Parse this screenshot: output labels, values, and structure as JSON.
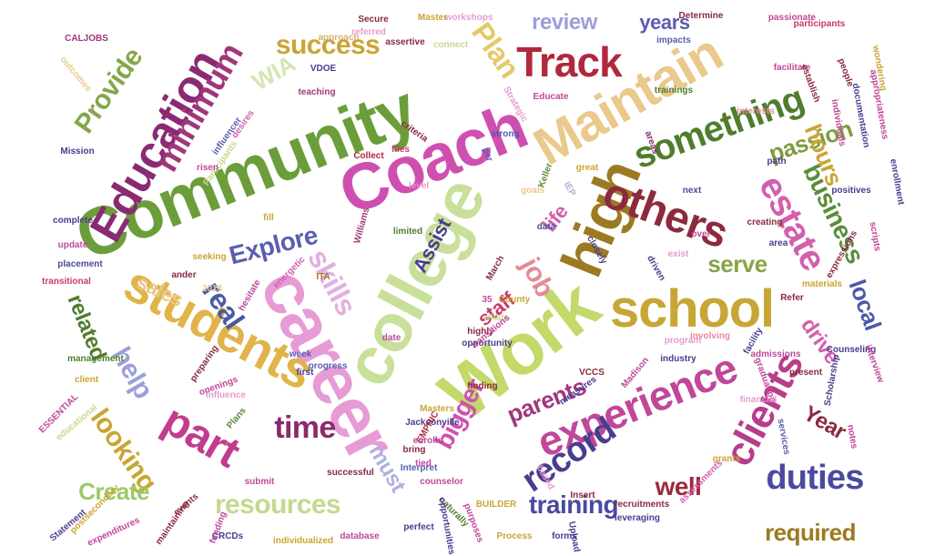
{
  "words": [
    {
      "text": "Community",
      "color": "#6b9e3a"
    },
    {
      "text": "career",
      "color": "#e79bd4"
    },
    {
      "text": "Work",
      "color": "#c3d96a"
    },
    {
      "text": "college",
      "color": "#c8e09a"
    },
    {
      "text": "Coach",
      "color": "#cf4fb0"
    },
    {
      "text": "Maintain",
      "color": "#e9c98c"
    },
    {
      "text": "high",
      "color": "#9b7a22"
    },
    {
      "text": "school",
      "color": "#c7a635"
    },
    {
      "text": "students",
      "color": "#e0b44a"
    },
    {
      "text": "Education",
      "color": "#8a2a73"
    },
    {
      "text": "experience",
      "color": "#c0479a"
    },
    {
      "text": "others",
      "color": "#8c2a3e"
    },
    {
      "text": "Track",
      "color": "#b0283e"
    },
    {
      "text": "part",
      "color": "#c23c8d"
    },
    {
      "text": "clients",
      "color": "#b83c8c"
    },
    {
      "text": "record",
      "color": "#4a3d8e"
    },
    {
      "text": "estate",
      "color": "#d35fad"
    },
    {
      "text": "duties",
      "color": "#4b4aa0"
    },
    {
      "text": "minimum",
      "color": "#a0377c"
    },
    {
      "text": "Plan",
      "color": "#e4c86a"
    },
    {
      "text": "something",
      "color": "#4f7d2e"
    },
    {
      "text": "success",
      "color": "#c9a534"
    },
    {
      "text": "Provide",
      "color": "#86a64a"
    },
    {
      "text": "real",
      "color": "#4a5aa8"
    },
    {
      "text": "skills",
      "color": "#e0b0e0"
    },
    {
      "text": "Explore",
      "color": "#5a5db0"
    },
    {
      "text": "time",
      "color": "#8a2a6b"
    },
    {
      "text": "help",
      "color": "#9aa0d8"
    },
    {
      "text": "resources",
      "color": "#c3d98f"
    },
    {
      "text": "training",
      "color": "#4a4aa0"
    },
    {
      "text": "required",
      "color": "#9b7a22"
    },
    {
      "text": "business",
      "color": "#5a8d3a"
    },
    {
      "text": "passion",
      "color": "#7d9d3e"
    },
    {
      "text": "hours",
      "color": "#c9a534"
    },
    {
      "text": "review",
      "color": "#9aa0d8"
    },
    {
      "text": "years",
      "color": "#5a5db0"
    },
    {
      "text": "parents",
      "color": "#a0377c"
    },
    {
      "text": "bigger",
      "color": "#cf4fb0"
    },
    {
      "text": "Year",
      "color": "#8a2a3e"
    },
    {
      "text": "local",
      "color": "#4a5aa8"
    },
    {
      "text": "looking",
      "color": "#c9a534"
    },
    {
      "text": "Create",
      "color": "#9dc96a"
    },
    {
      "text": "well",
      "color": "#9b2a3e"
    },
    {
      "text": "must",
      "color": "#b0b0e0"
    },
    {
      "text": "serve",
      "color": "#86a64a"
    },
    {
      "text": "drive",
      "color": "#d35fad"
    },
    {
      "text": "sales",
      "color": "#e9c98c"
    },
    {
      "text": "related",
      "color": "#4f7d2e"
    },
    {
      "text": "Assist",
      "color": "#4a3d8e"
    },
    {
      "text": "job",
      "color": "#e58a95"
    },
    {
      "text": "staff",
      "color": "#c83a6a"
    },
    {
      "text": "life",
      "color": "#d35fad"
    },
    {
      "text": "WIA",
      "color": "#d5e6b5"
    },
    {
      "text": "CALJOBS",
      "color": "#a0377c"
    },
    {
      "text": "outcomes",
      "color": "#e9c98c"
    },
    {
      "text": "Secure",
      "color": "#8a2a3e"
    },
    {
      "text": "workshops",
      "color": "#e79bd4"
    },
    {
      "text": "Master",
      "color": "#c9a534"
    },
    {
      "text": "referred",
      "color": "#e79bd4"
    },
    {
      "text": "approach",
      "color": "#d5b07a"
    },
    {
      "text": "assertive",
      "color": "#8a2a3e"
    },
    {
      "text": "connect",
      "color": "#c3d98f"
    },
    {
      "text": "VDOE",
      "color": "#4a3d8e"
    },
    {
      "text": "teaching",
      "color": "#a0377c"
    },
    {
      "text": "Determine",
      "color": "#8a2a3e"
    },
    {
      "text": "passionate",
      "color": "#c0479a"
    },
    {
      "text": "impacts",
      "color": "#5a5db0"
    },
    {
      "text": "trainings",
      "color": "#4f7d2e"
    },
    {
      "text": "Educate",
      "color": "#c0479a"
    },
    {
      "text": "Strategic",
      "color": "#e79bd4"
    },
    {
      "text": "strong",
      "color": "#4a5aa8"
    },
    {
      "text": "Mission",
      "color": "#4a3d8e"
    },
    {
      "text": "influencer",
      "color": "#5a5db0"
    },
    {
      "text": "desires",
      "color": "#d35fad"
    },
    {
      "text": "Participants",
      "color": "#c3d98f"
    },
    {
      "text": "risen",
      "color": "#c0479a"
    },
    {
      "text": "files",
      "color": "#c83a6a"
    },
    {
      "text": "Collect",
      "color": "#b0283e"
    },
    {
      "text": "criteria",
      "color": "#8a2a3e"
    },
    {
      "text": "per",
      "color": "#5a5db0"
    },
    {
      "text": "great",
      "color": "#c9a534"
    },
    {
      "text": "next",
      "color": "#4a4aa0"
    },
    {
      "text": "areas",
      "color": "#8a2a6b"
    },
    {
      "text": "path",
      "color": "#4a3d8e"
    },
    {
      "text": "documentation",
      "color": "#4a3d8e"
    },
    {
      "text": "individuals",
      "color": "#c0479a"
    },
    {
      "text": "interests",
      "color": "#e58a95"
    },
    {
      "text": "participants",
      "color": "#c83a6a"
    },
    {
      "text": "Keller",
      "color": "#5a8d3a"
    },
    {
      "text": "IEP",
      "color": "#b0b0e0"
    },
    {
      "text": "complete",
      "color": "#4a3d8e"
    },
    {
      "text": "update",
      "color": "#c0479a"
    },
    {
      "text": "Williams",
      "color": "#a0377c"
    },
    {
      "text": "placement",
      "color": "#4a4aa0"
    },
    {
      "text": "transitional",
      "color": "#c83a6a"
    },
    {
      "text": "seeking",
      "color": "#c9a534"
    },
    {
      "text": "limited",
      "color": "#4f7d2e"
    },
    {
      "text": "ander",
      "color": "#8a2a3e"
    },
    {
      "text": "2018",
      "color": "#e9c98c"
    },
    {
      "text": "hesitate",
      "color": "#c0479a"
    },
    {
      "text": "energetic",
      "color": "#d35fad"
    },
    {
      "text": "ITA",
      "color": "#9b7a22"
    },
    {
      "text": "March",
      "color": "#8a2a3e"
    },
    {
      "text": "County",
      "color": "#c9a534"
    },
    {
      "text": "closely",
      "color": "#4a3d8e"
    },
    {
      "text": "exist",
      "color": "#e79bd4"
    },
    {
      "text": "driven",
      "color": "#4a3d8e"
    },
    {
      "text": "Refer",
      "color": "#8a2a3e"
    },
    {
      "text": "materials",
      "color": "#c9a534"
    },
    {
      "text": "35",
      "color": "#c0479a"
    },
    {
      "text": "Counseling",
      "color": "#4a3d8e"
    },
    {
      "text": "whats",
      "color": "#c3d98f"
    },
    {
      "text": "highly",
      "color": "#8a2a3e"
    },
    {
      "text": "opportunity",
      "color": "#4a3d8e"
    },
    {
      "text": "date",
      "color": "#c0479a"
    },
    {
      "text": "week",
      "color": "#5a5db0"
    },
    {
      "text": "program",
      "color": "#e79bd4"
    },
    {
      "text": "involving",
      "color": "#e58a95"
    },
    {
      "text": "facility",
      "color": "#4a3d8e"
    },
    {
      "text": "admissions",
      "color": "#c0479a"
    },
    {
      "text": "industry",
      "color": "#4a3d8e"
    },
    {
      "text": "Madison",
      "color": "#c0479a"
    },
    {
      "text": "VCCS",
      "color": "#8a2a3e"
    },
    {
      "text": "progress",
      "color": "#5a5db0"
    },
    {
      "text": "first",
      "color": "#4a3d8e"
    },
    {
      "text": "management",
      "color": "#4f7d2e"
    },
    {
      "text": "preparing",
      "color": "#8a2a3e"
    },
    {
      "text": "client",
      "color": "#c9a534"
    },
    {
      "text": "openings",
      "color": "#c0479a"
    },
    {
      "text": "influence",
      "color": "#e79bd4"
    },
    {
      "text": "ESSENTIAL",
      "color": "#c0479a"
    },
    {
      "text": "educational",
      "color": "#c3d98f"
    },
    {
      "text": "finding",
      "color": "#8a2a3e"
    },
    {
      "text": "measures",
      "color": "#4a3d8e"
    },
    {
      "text": "Masters",
      "color": "#c9a534"
    },
    {
      "text": "Jacksonville",
      "color": "#4a3d8e"
    },
    {
      "text": "graduation",
      "color": "#c0479a"
    },
    {
      "text": "financial",
      "color": "#e79bd4"
    },
    {
      "text": "present",
      "color": "#8a2a3e"
    },
    {
      "text": "Scholarship",
      "color": "#4a3d8e"
    },
    {
      "text": "interview",
      "color": "#c0479a"
    },
    {
      "text": "services",
      "color": "#5a5db0"
    },
    {
      "text": "notes",
      "color": "#c0479a"
    },
    {
      "text": "grants",
      "color": "#c9a534"
    },
    {
      "text": "assessments",
      "color": "#d35fad"
    },
    {
      "text": "recruitments",
      "color": "#8a2a3e"
    },
    {
      "text": "leveraging",
      "color": "#4a3d8e"
    },
    {
      "text": "submit",
      "color": "#c0479a"
    },
    {
      "text": "events",
      "color": "#8a2a3e"
    },
    {
      "text": "CRCDs",
      "color": "#4a3d8e"
    },
    {
      "text": "individualized",
      "color": "#c9a534"
    },
    {
      "text": "database",
      "color": "#c0479a"
    },
    {
      "text": "perfect",
      "color": "#4a3d8e"
    },
    {
      "text": "Process",
      "color": "#c9a534"
    },
    {
      "text": "forms",
      "color": "#4a3d8e"
    },
    {
      "text": "based",
      "color": "#e79bd4"
    },
    {
      "text": "naturally",
      "color": "#4f7d2e"
    },
    {
      "text": "BUILDER",
      "color": "#c9a534"
    },
    {
      "text": "counselor",
      "color": "#c0479a"
    },
    {
      "text": "successful",
      "color": "#8a2a3e"
    },
    {
      "text": "Interpret",
      "color": "#5a5db0"
    },
    {
      "text": "opportunities",
      "color": "#4a3d8e"
    },
    {
      "text": "purposes",
      "color": "#c0479a"
    },
    {
      "text": "Statement",
      "color": "#4a3d8e"
    },
    {
      "text": "expenditures",
      "color": "#c0479a"
    },
    {
      "text": "maintaining",
      "color": "#8a2a3e"
    },
    {
      "text": "funding",
      "color": "#c0479a"
    },
    {
      "text": "postsecondary",
      "color": "#c9a534"
    },
    {
      "text": "Plans",
      "color": "#5a8d3a"
    },
    {
      "text": "bring",
      "color": "#8a2a3e"
    },
    {
      "text": "EMPHIC",
      "color": "#b0283e"
    },
    {
      "text": "enrolls",
      "color": "#c0479a"
    },
    {
      "text": "appropriateness",
      "color": "#c0479a"
    },
    {
      "text": "enrollment",
      "color": "#4a3d8e"
    },
    {
      "text": "people",
      "color": "#8a2a3e"
    },
    {
      "text": "facilitate",
      "color": "#c0479a"
    },
    {
      "text": "wondering",
      "color": "#c9a534"
    },
    {
      "text": "positives",
      "color": "#4a3d8e"
    },
    {
      "text": "scripts",
      "color": "#c0479a"
    },
    {
      "text": "expressions",
      "color": "#8a2a3e"
    },
    {
      "text": "creating",
      "color": "#8a2a3e"
    },
    {
      "text": "area",
      "color": "#4a3d8e"
    },
    {
      "text": "establish",
      "color": "#8a2a3e"
    },
    {
      "text": "data",
      "color": "#4a4aa0"
    },
    {
      "text": "goals",
      "color": "#e9c98c"
    },
    {
      "text": "transitions",
      "color": "#c0479a"
    },
    {
      "text": "Upload",
      "color": "#4a3d8e"
    },
    {
      "text": "Insert",
      "color": "#8a2a3e"
    },
    {
      "text": "over",
      "color": "#c0479a"
    },
    {
      "text": "level",
      "color": "#e79bd4"
    },
    {
      "text": "fill",
      "color": "#c9a534"
    },
    {
      "text": "tied",
      "color": "#c0479a"
    }
  ]
}
